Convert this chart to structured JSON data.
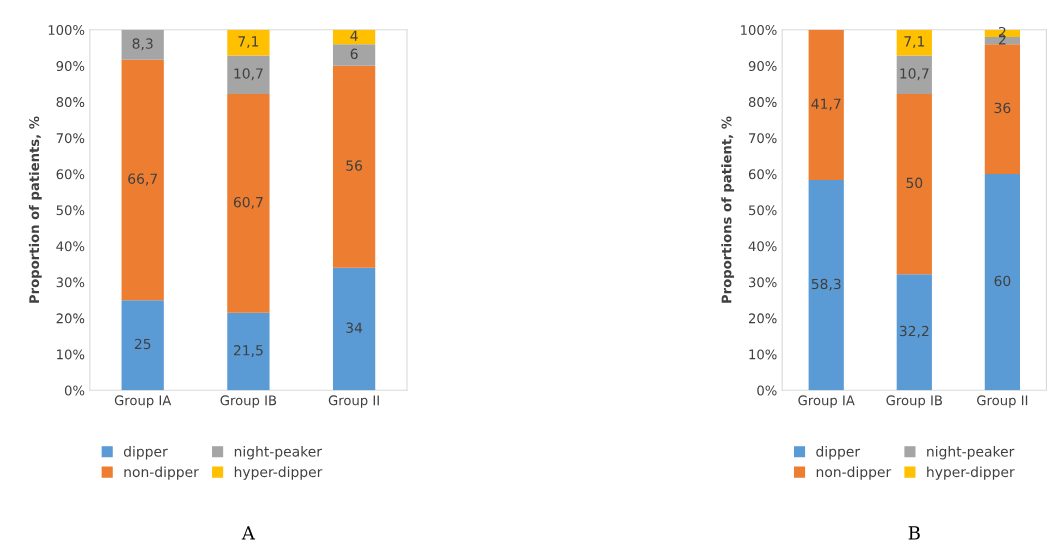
{
  "chart_data": [
    {
      "type": "bar",
      "stacked": true,
      "ylabel": "Proportion of patients, %",
      "categories": [
        "Group IA",
        "Group IB",
        "Group II"
      ],
      "ylim": [
        0,
        100
      ],
      "yticks": [
        {
          "value": 0,
          "label": "0%"
        },
        {
          "value": 10,
          "label": "10%"
        },
        {
          "value": 20,
          "label": "20%"
        },
        {
          "value": 30,
          "label": "30%"
        },
        {
          "value": 40,
          "label": "40%"
        },
        {
          "value": 50,
          "label": "50%"
        },
        {
          "value": 60,
          "label": "60%"
        },
        {
          "value": 70,
          "label": "70%"
        },
        {
          "value": 80,
          "label": "80%"
        },
        {
          "value": 90,
          "label": "90%"
        },
        {
          "value": 100,
          "label": "100%"
        }
      ],
      "legend": "bottom",
      "annotations": [
        "A"
      ],
      "series": [
        {
          "name": "dipper",
          "color": "#5b9bd5",
          "values": [
            25,
            21.5,
            34
          ],
          "value_labels": [
            "25",
            "21,5",
            "34"
          ]
        },
        {
          "name": "non-dipper",
          "color": "#ed7d31",
          "values": [
            66.7,
            60.7,
            56
          ],
          "value_labels": [
            "66,7",
            "60,7",
            "56"
          ]
        },
        {
          "name": "night-peaker",
          "color": "#a5a5a5",
          "values": [
            8.3,
            10.7,
            6
          ],
          "value_labels": [
            "8,3",
            "10,7",
            "6"
          ]
        },
        {
          "name": "hyper-dipper",
          "color": "#ffc000",
          "values": [
            0,
            7.1,
            4
          ],
          "value_labels": [
            null,
            "7,1",
            "4"
          ]
        }
      ]
    },
    {
      "type": "bar",
      "stacked": true,
      "ylabel": "Proportions of patient, %",
      "categories": [
        "Group IA",
        "Group IB",
        "Group II"
      ],
      "ylim": [
        0,
        100
      ],
      "yticks": [
        {
          "value": 0,
          "label": "0%"
        },
        {
          "value": 10,
          "label": "10%"
        },
        {
          "value": 20,
          "label": "20%"
        },
        {
          "value": 30,
          "label": "30%"
        },
        {
          "value": 40,
          "label": "40%"
        },
        {
          "value": 50,
          "label": "50%"
        },
        {
          "value": 60,
          "label": "60%"
        },
        {
          "value": 70,
          "label": "70%"
        },
        {
          "value": 80,
          "label": "80%"
        },
        {
          "value": 90,
          "label": "90%"
        },
        {
          "value": 100,
          "label": "100%"
        }
      ],
      "legend": "bottom",
      "annotations": [
        "B"
      ],
      "series": [
        {
          "name": "dipper",
          "color": "#5b9bd5",
          "values": [
            58.3,
            32.2,
            60
          ],
          "value_labels": [
            "58,3",
            "32,2",
            "60"
          ]
        },
        {
          "name": "non-dipper",
          "color": "#ed7d31",
          "values": [
            41.7,
            50,
            36
          ],
          "value_labels": [
            "41,7",
            "50",
            "36"
          ]
        },
        {
          "name": "night-peaker",
          "color": "#a5a5a5",
          "values": [
            0,
            10.7,
            2
          ],
          "value_labels": [
            null,
            "10,7",
            "2"
          ]
        },
        {
          "name": "hyper-dipper",
          "color": "#ffc000",
          "values": [
            0,
            7.1,
            2
          ],
          "value_labels": [
            null,
            "7,1",
            "2"
          ]
        }
      ]
    }
  ]
}
